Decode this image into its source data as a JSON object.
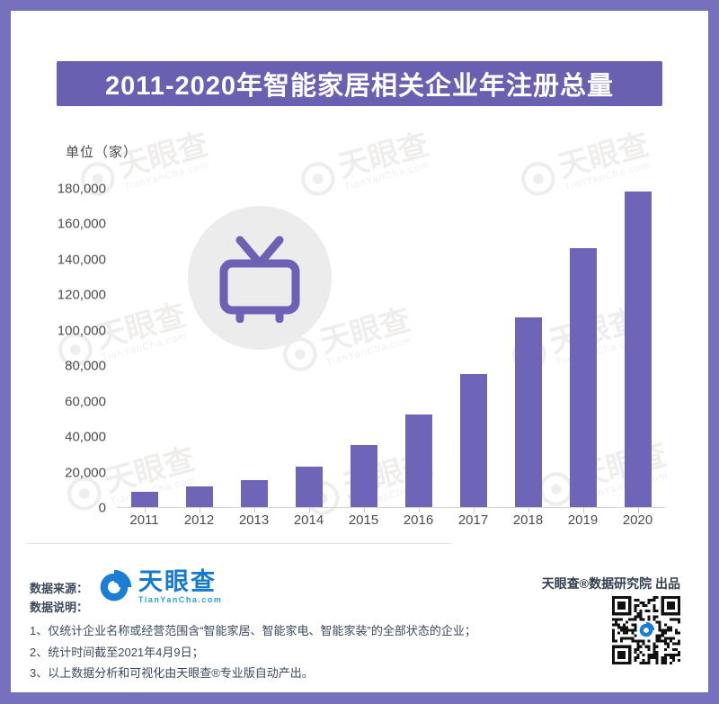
{
  "banner": {
    "title": "2011-2020年智能家居相关企业年注册总量"
  },
  "chart_data": {
    "type": "bar",
    "title": "2011-2020年智能家居相关企业年注册总量",
    "unit_label": "单位（家）",
    "categories": [
      "2011",
      "2012",
      "2013",
      "2014",
      "2015",
      "2016",
      "2017",
      "2018",
      "2019",
      "2020"
    ],
    "values": [
      8500,
      11500,
      15000,
      23000,
      35000,
      52000,
      75000,
      107000,
      146000,
      178000
    ],
    "ylim": [
      0,
      180000
    ],
    "y_tick_labels": [
      "0",
      "20,000",
      "40,000",
      "60,000",
      "80,000",
      "100,000",
      "120,000",
      "140,000",
      "160,000",
      "180,000"
    ],
    "xlabel": "",
    "ylabel": "单位（家）",
    "grid": false,
    "legend": false,
    "bar_color": "#6f65b8"
  },
  "watermark": {
    "logo_text": "天眼查",
    "domain_text": "TianYanCha.com"
  },
  "footer": {
    "source_label": "数据来源：",
    "logo_name": "天眼查",
    "logo_domain": "TianYanCha.com",
    "notes_label": "数据说明：",
    "notes": [
      "1、仅统计企业名称或经营范围含“智能家居、智能家电、智能家装”的全部状态的企业；",
      "2、统计时间截至2021年4月9日；",
      "3、以上数据分析和可视化由天眼查®专业版自动产出。"
    ],
    "produced_by": "天眼查®数据研究院 出品"
  },
  "colors": {
    "frame": "#7671bd",
    "banner": "#6a60b2",
    "bar": "#6f65b8",
    "logo_blue": "#1a7fd4",
    "tv_icon": "#6c61b5"
  }
}
